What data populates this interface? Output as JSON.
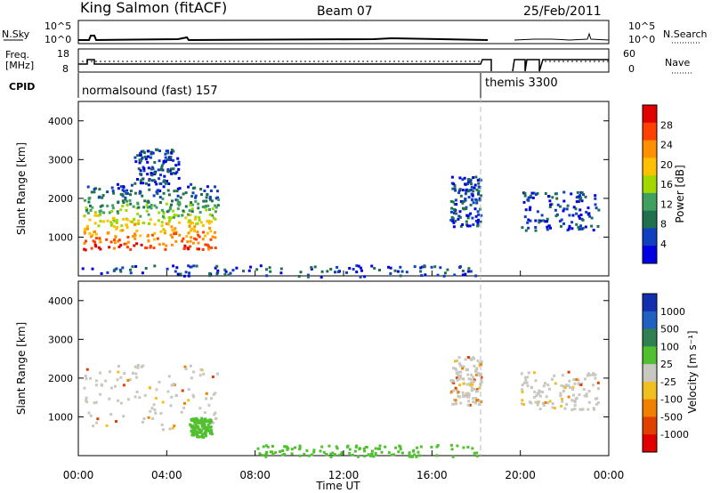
{
  "header": {
    "station": "King Salmon (fitACF)",
    "beam": "Beam 07",
    "date": "25/Feb/2011"
  },
  "top_panels": {
    "nsky_label": "N.Sky",
    "nsky_ticks": [
      "10^5",
      "10^0"
    ],
    "nsearch_label": "N.Search",
    "nsearch_ticks": [
      "10^5",
      "10^0"
    ],
    "freq_label": "Freq.",
    "freq_unit": "[MHz]",
    "freq_ticks": [
      "18",
      "8"
    ],
    "nave_label": "Nave",
    "nave_ticks": [
      "60",
      "0"
    ],
    "cpid_label": "CPID",
    "cpid_segments": [
      {
        "name": "normalsound (fast) 157",
        "start_h": 0,
        "end_h": 18.0
      },
      {
        "name": "themis 3300",
        "start_h": 18.0,
        "end_h": 24
      }
    ]
  },
  "power_colorbar": {
    "label": "Power [dB]",
    "ticks": [
      "28",
      "24",
      "20",
      "16",
      "12",
      "8",
      "4"
    ],
    "colors": [
      "#e00000",
      "#ff4000",
      "#ff9000",
      "#ffc000",
      "#a0d800",
      "#40a060",
      "#207050",
      "#1040c0",
      "#0000e0"
    ]
  },
  "velocity_colorbar": {
    "label": "Velocity [m s⁻¹]",
    "ticks": [
      "1000",
      "500",
      "100",
      "25",
      "-25",
      "-100",
      "-500",
      "-1000"
    ],
    "colors": [
      "#1030b0",
      "#2060c0",
      "#308050",
      "#50c030",
      "#c8c8c0",
      "#f0c020",
      "#f08000",
      "#e04000",
      "#e00000"
    ]
  },
  "chart_data": [
    {
      "type": "heatmap",
      "title": "",
      "ylabel": "Slant Range [km]",
      "xlabel": "",
      "ylim": [
        0,
        4500
      ],
      "xlim_hours": [
        0,
        24
      ],
      "y_ticks": [
        1000,
        2000,
        3000,
        4000
      ],
      "quantity": "Power [dB]",
      "regions": [
        {
          "x_range_h": [
            0.2,
            6.3
          ],
          "y_range_km": [
            700,
            2400
          ],
          "level": "high"
        },
        {
          "x_range_h": [
            2.5,
            4.5
          ],
          "y_range_km": [
            2400,
            3300
          ],
          "level": "low"
        },
        {
          "x_range_h": [
            16.8,
            18.2
          ],
          "y_range_km": [
            1300,
            2600
          ],
          "level": "low"
        },
        {
          "x_range_h": [
            20.0,
            23.5
          ],
          "y_range_km": [
            1200,
            2200
          ],
          "level": "low"
        },
        {
          "x_range_h": [
            0,
            18
          ],
          "y_range_km": [
            0,
            300
          ],
          "level": "low"
        }
      ]
    },
    {
      "type": "heatmap",
      "title": "",
      "ylabel": "Slant Range [km]",
      "xlabel": "Time UT",
      "ylim": [
        0,
        4500
      ],
      "xlim_hours": [
        0,
        24
      ],
      "y_ticks": [
        1000,
        2000,
        3000,
        4000
      ],
      "quantity": "Velocity [m s⁻¹]",
      "regions": [
        {
          "x_range_h": [
            0.2,
            6.3
          ],
          "y_range_km": [
            700,
            2400
          ],
          "level": "near-zero"
        },
        {
          "x_range_h": [
            5.0,
            6.0
          ],
          "y_range_km": [
            500,
            1000
          ],
          "level": "positive"
        },
        {
          "x_range_h": [
            16.8,
            18.2
          ],
          "y_range_km": [
            1300,
            2600
          ],
          "level": "near-zero"
        },
        {
          "x_range_h": [
            20.0,
            23.5
          ],
          "y_range_km": [
            1200,
            2200
          ],
          "level": "near-zero"
        },
        {
          "x_range_h": [
            8,
            18
          ],
          "y_range_km": [
            0,
            300
          ],
          "level": "positive"
        }
      ]
    }
  ],
  "x_axis": {
    "ticks": [
      "00:00",
      "04:00",
      "08:00",
      "12:00",
      "16:00",
      "20:00",
      "00:00"
    ],
    "label": "Time UT"
  }
}
